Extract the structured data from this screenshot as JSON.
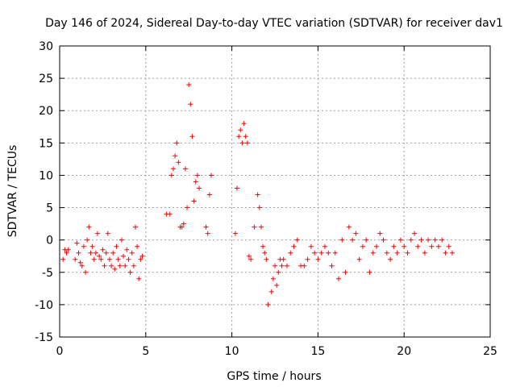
{
  "chart_data": {
    "type": "scatter",
    "title": "Day 146 of 2024, Sidereal Day-to-day VTEC variation (SDTVAR) for receiver dav1",
    "xlabel": "GPS time / hours",
    "ylabel": "SDTVAR / TECUs",
    "xlim": [
      0,
      25
    ],
    "ylim": [
      -15,
      30
    ],
    "xticks": [
      0,
      5,
      10,
      15,
      20,
      25
    ],
    "yticks": [
      -15,
      -10,
      -5,
      0,
      5,
      10,
      15,
      20,
      25,
      30
    ],
    "grid": true,
    "marker": "+",
    "color": "#ff0000",
    "series": [
      {
        "name": "SDTVAR",
        "x": [
          0.2,
          0.3,
          0.4,
          0.5,
          0.9,
          1.0,
          1.1,
          1.2,
          1.3,
          1.4,
          1.5,
          1.6,
          1.7,
          1.8,
          1.9,
          2.0,
          2.1,
          2.2,
          2.3,
          2.4,
          2.5,
          2.6,
          2.7,
          2.8,
          2.9,
          3.0,
          3.1,
          3.2,
          3.3,
          3.4,
          3.5,
          3.6,
          3.7,
          3.8,
          3.9,
          4.0,
          4.1,
          4.2,
          4.3,
          4.4,
          4.5,
          4.6,
          4.7,
          4.8,
          6.2,
          6.4,
          6.5,
          6.6,
          6.7,
          6.8,
          6.9,
          7.0,
          7.1,
          7.2,
          7.3,
          7.4,
          7.5,
          7.6,
          7.7,
          7.8,
          7.9,
          8.0,
          8.1,
          8.5,
          8.6,
          8.7,
          8.8,
          10.2,
          10.3,
          10.4,
          10.5,
          10.6,
          10.7,
          10.8,
          10.9,
          11.0,
          11.1,
          11.3,
          11.5,
          11.6,
          11.7,
          11.8,
          11.9,
          12.0,
          12.1,
          12.3,
          12.4,
          12.5,
          12.6,
          12.7,
          12.8,
          12.9,
          13.0,
          13.2,
          13.4,
          13.6,
          13.8,
          14.0,
          14.2,
          14.4,
          14.6,
          14.8,
          15.0,
          15.2,
          15.4,
          15.6,
          15.8,
          16.0,
          16.2,
          16.4,
          16.6,
          16.8,
          17.0,
          17.2,
          17.4,
          17.6,
          17.8,
          18.0,
          18.2,
          18.4,
          18.6,
          18.8,
          19.0,
          19.2,
          19.4,
          19.6,
          19.8,
          20.0,
          20.2,
          20.4,
          20.6,
          20.8,
          21.0,
          21.2,
          21.4,
          21.6,
          21.8,
          22.0,
          22.2,
          22.4,
          22.6,
          22.8
        ],
        "y": [
          -3,
          -1.5,
          -2,
          -1.5,
          -3,
          -0.5,
          -2,
          -3.5,
          -4,
          -1,
          -5,
          0,
          2,
          -2,
          -1,
          -3,
          -2,
          1,
          -2.5,
          -3,
          -1.5,
          -4,
          -2,
          1,
          -3,
          -4,
          -2,
          -4.5,
          -1,
          -3,
          -4,
          0,
          -2.5,
          -4,
          -1.5,
          -3,
          -5,
          -2,
          -4,
          2,
          -1,
          -6,
          -3,
          -2.5,
          4,
          4,
          10,
          11,
          13,
          15,
          12,
          2,
          2,
          2.5,
          11,
          5,
          24,
          21,
          16,
          6,
          9,
          10,
          8,
          2,
          1,
          7,
          10,
          1,
          8,
          16,
          17,
          15,
          18,
          16,
          15,
          -2.5,
          -3,
          2,
          7,
          5,
          2,
          -1,
          -2,
          -3,
          -10,
          -8,
          -6,
          -4,
          -7,
          -5,
          -3,
          -4,
          -3,
          -4,
          -2,
          -1,
          0,
          -4,
          -4,
          -3,
          -1,
          -2,
          -3,
          -2,
          -1,
          -2,
          -4,
          -2,
          -6,
          0,
          -5,
          2,
          0,
          1,
          -3,
          -1,
          0,
          -5,
          -2,
          -1,
          1,
          0,
          -2,
          -3,
          -1,
          -2,
          0,
          -1,
          -2,
          0,
          1,
          -1,
          0,
          -2,
          0,
          -1,
          0,
          -1,
          0,
          -2,
          -1,
          -2
        ]
      }
    ]
  }
}
